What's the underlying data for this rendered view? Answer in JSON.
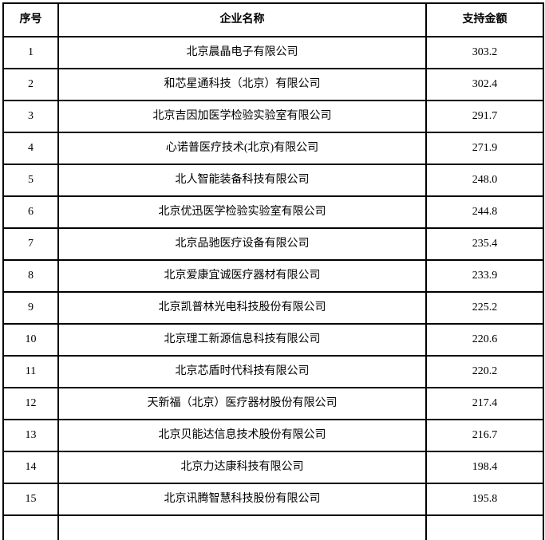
{
  "table": {
    "headers": {
      "seq": "序号",
      "company": "企业名称",
      "amount": "支持金额"
    },
    "rows": [
      {
        "seq": "1",
        "company": "北京晨晶电子有限公司",
        "amount": "303.2"
      },
      {
        "seq": "2",
        "company": "和芯星通科技（北京）有限公司",
        "amount": "302.4"
      },
      {
        "seq": "3",
        "company": "北京吉因加医学检验实验室有限公司",
        "amount": "291.7"
      },
      {
        "seq": "4",
        "company": "心诺普医疗技术(北京)有限公司",
        "amount": "271.9"
      },
      {
        "seq": "5",
        "company": "北人智能装备科技有限公司",
        "amount": "248.0"
      },
      {
        "seq": "6",
        "company": "北京优迅医学检验实验室有限公司",
        "amount": "244.8"
      },
      {
        "seq": "7",
        "company": "北京品驰医疗设备有限公司",
        "amount": "235.4"
      },
      {
        "seq": "8",
        "company": "北京爱康宜诚医疗器材有限公司",
        "amount": "233.9"
      },
      {
        "seq": "9",
        "company": "北京凯普林光电科技股份有限公司",
        "amount": "225.2"
      },
      {
        "seq": "10",
        "company": "北京理工新源信息科技有限公司",
        "amount": "220.6"
      },
      {
        "seq": "11",
        "company": "北京芯盾时代科技有限公司",
        "amount": "220.2"
      },
      {
        "seq": "12",
        "company": "天新福（北京）医疗器材股份有限公司",
        "amount": "217.4"
      },
      {
        "seq": "13",
        "company": "北京贝能达信息技术股份有限公司",
        "amount": "216.7"
      },
      {
        "seq": "14",
        "company": "北京力达康科技有限公司",
        "amount": "198.4"
      },
      {
        "seq": "15",
        "company": "北京讯腾智慧科技股份有限公司",
        "amount": "195.8"
      }
    ]
  },
  "colors": {
    "border": "#000000",
    "text": "#000000",
    "background": "#ffffff"
  }
}
